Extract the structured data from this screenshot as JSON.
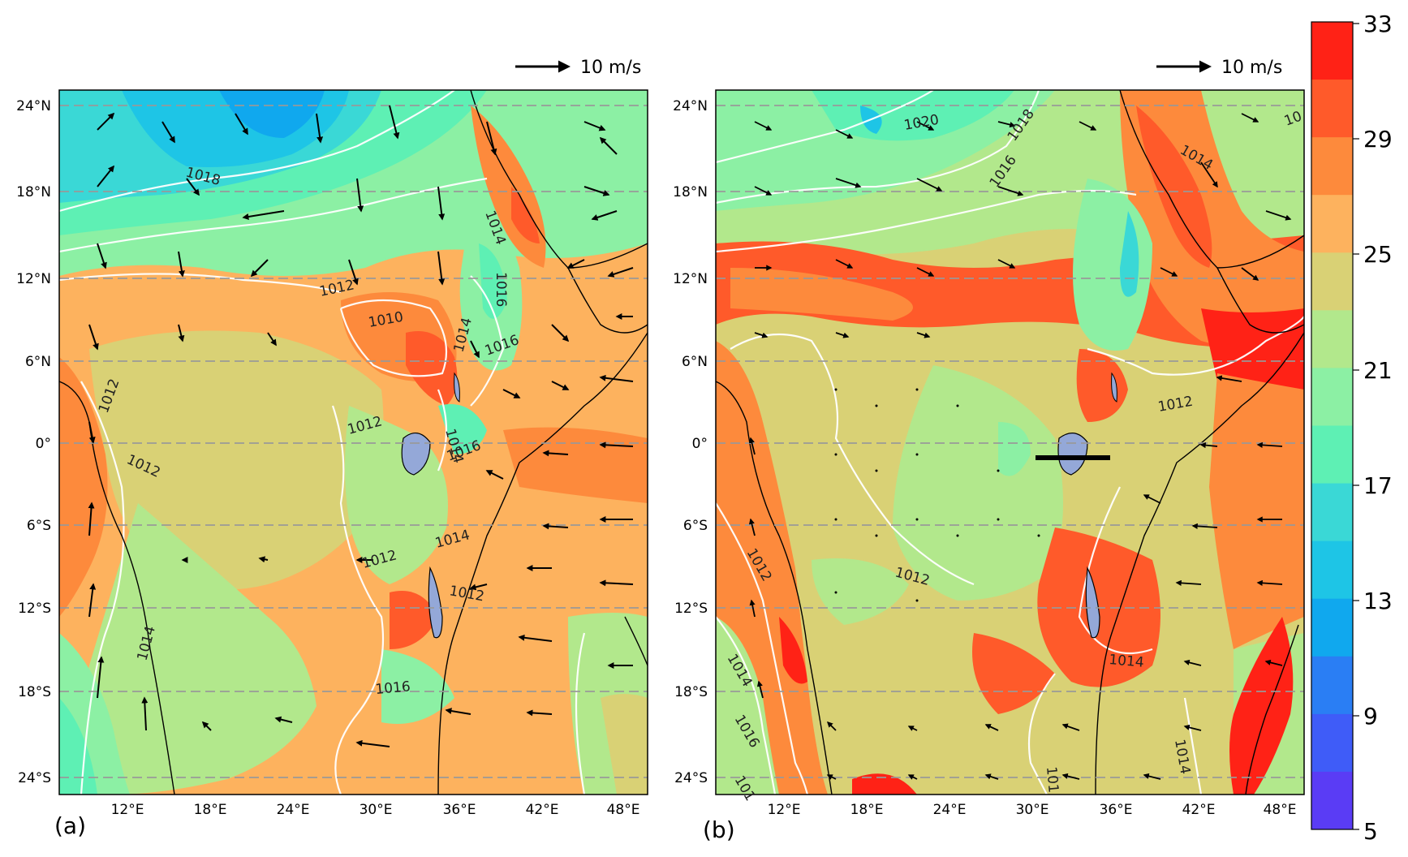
{
  "panels": [
    {
      "id": "a",
      "label": "(a)",
      "ref_arrow_label": "10 m/s",
      "contour_labels": [
        "1018",
        "1012",
        "1010",
        "1014",
        "1016",
        "1012",
        "1012",
        "1012",
        "1014",
        "1016",
        "1014",
        "1016",
        "1012",
        "1014",
        "1012",
        "1016",
        "1014",
        "1016"
      ]
    },
    {
      "id": "b",
      "label": "(b)",
      "ref_arrow_label": "10 m/s",
      "contour_labels": [
        "1020",
        "1018",
        "1016",
        "1014",
        "1012",
        "1012",
        "1012",
        "1014",
        "1014",
        "1016",
        "1014",
        "101",
        "101",
        "10"
      ]
    }
  ],
  "axes": {
    "lat_ticks": [
      "24°N",
      "18°N",
      "12°N",
      "6°N",
      "0°",
      "6°S",
      "12°S",
      "18°S",
      "24°S"
    ],
    "lon_ticks": [
      "12°E",
      "18°E",
      "24°E",
      "30°E",
      "36°E",
      "42°E",
      "48°E"
    ]
  },
  "colorbar": {
    "tick_labels": [
      "33",
      "29",
      "25",
      "21",
      "17",
      "13",
      "9",
      "5"
    ],
    "colors": [
      "#ff2216",
      "#ff5a2a",
      "#fd8a3c",
      "#fdb25e",
      "#d9d175",
      "#b2e88c",
      "#8cf0a4",
      "#5ef0b4",
      "#3ad8d6",
      "#1ec5e6",
      "#10a8ee",
      "#2a7ef4",
      "#3f5cf8",
      "#5a3cf5"
    ]
  }
}
